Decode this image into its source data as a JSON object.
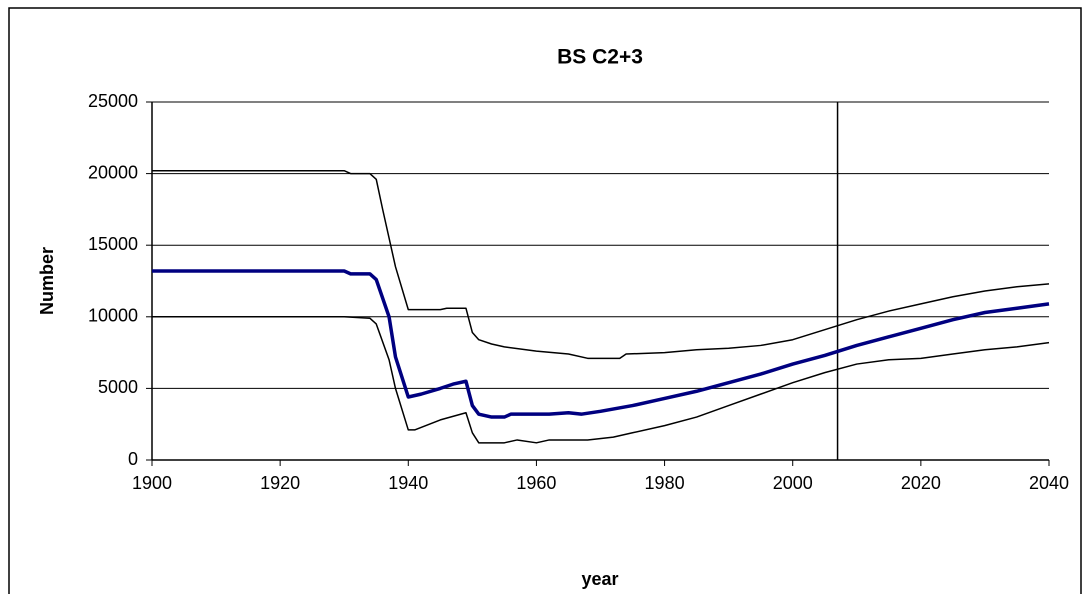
{
  "chart_data": {
    "type": "line",
    "title": "BS C2+3",
    "xlabel": "year",
    "ylabel": "Number",
    "xlim": [
      1900,
      2040
    ],
    "xticks": [
      1900,
      1920,
      1940,
      1960,
      1980,
      2000,
      2020,
      2040
    ],
    "ylim": [
      0,
      25000
    ],
    "yticks": [
      0,
      5000,
      10000,
      15000,
      20000,
      25000
    ],
    "grid": true,
    "vline": 2007,
    "vline_color": "#000000",
    "series": [
      {
        "color": "#000000",
        "width": 1.5,
        "x": [
          1900,
          1930,
          1931,
          1934,
          1935,
          1936,
          1938,
          1940,
          1945,
          1946,
          1949,
          1950,
          1951,
          1953,
          1955,
          1960,
          1965,
          1968,
          1973,
          1974,
          1980,
          1985,
          1990,
          1995,
          2000,
          2005,
          2010,
          2015,
          2020,
          2025,
          2030,
          2035,
          2040
        ],
        "values": [
          20200,
          20200,
          20000,
          20000,
          19600,
          17500,
          13500,
          10500,
          10500,
          10600,
          10600,
          8900,
          8400,
          8100,
          7900,
          7600,
          7400,
          7100,
          7100,
          7400,
          7500,
          7700,
          7800,
          8000,
          8400,
          9100,
          9800,
          10400,
          10900,
          11400,
          11800,
          12100,
          12300
        ]
      },
      {
        "color": "#000080",
        "width": 3.5,
        "x": [
          1900,
          1930,
          1931,
          1934,
          1935,
          1937,
          1938,
          1940,
          1942,
          1945,
          1947,
          1949,
          1950,
          1951,
          1953,
          1955,
          1956,
          1962,
          1965,
          1967,
          1970,
          1975,
          1980,
          1985,
          1990,
          1995,
          2000,
          2005,
          2010,
          2015,
          2020,
          2025,
          2030,
          2035,
          2040
        ],
        "values": [
          13200,
          13200,
          13000,
          13000,
          12600,
          10000,
          7200,
          4400,
          4600,
          5000,
          5300,
          5500,
          3800,
          3200,
          3000,
          3000,
          3200,
          3200,
          3300,
          3200,
          3400,
          3800,
          4300,
          4800,
          5400,
          6000,
          6700,
          7300,
          8000,
          8600,
          9200,
          9800,
          10300,
          10600,
          10900
        ]
      },
      {
        "color": "#000000",
        "width": 1.5,
        "x": [
          1900,
          1930,
          1934,
          1935,
          1937,
          1938,
          1940,
          1941,
          1945,
          1949,
          1950,
          1951,
          1955,
          1957,
          1960,
          1962,
          1968,
          1972,
          1975,
          1980,
          1985,
          1990,
          1995,
          2000,
          2005,
          2010,
          2015,
          2020,
          2025,
          2030,
          2035,
          2040
        ],
        "values": [
          10000,
          10000,
          9900,
          9500,
          7000,
          5000,
          2100,
          2100,
          2800,
          3300,
          1900,
          1200,
          1200,
          1400,
          1200,
          1400,
          1400,
          1600,
          1900,
          2400,
          3000,
          3800,
          4600,
          5400,
          6100,
          6700,
          7000,
          7100,
          7400,
          7700,
          7900,
          8200
        ]
      }
    ]
  }
}
